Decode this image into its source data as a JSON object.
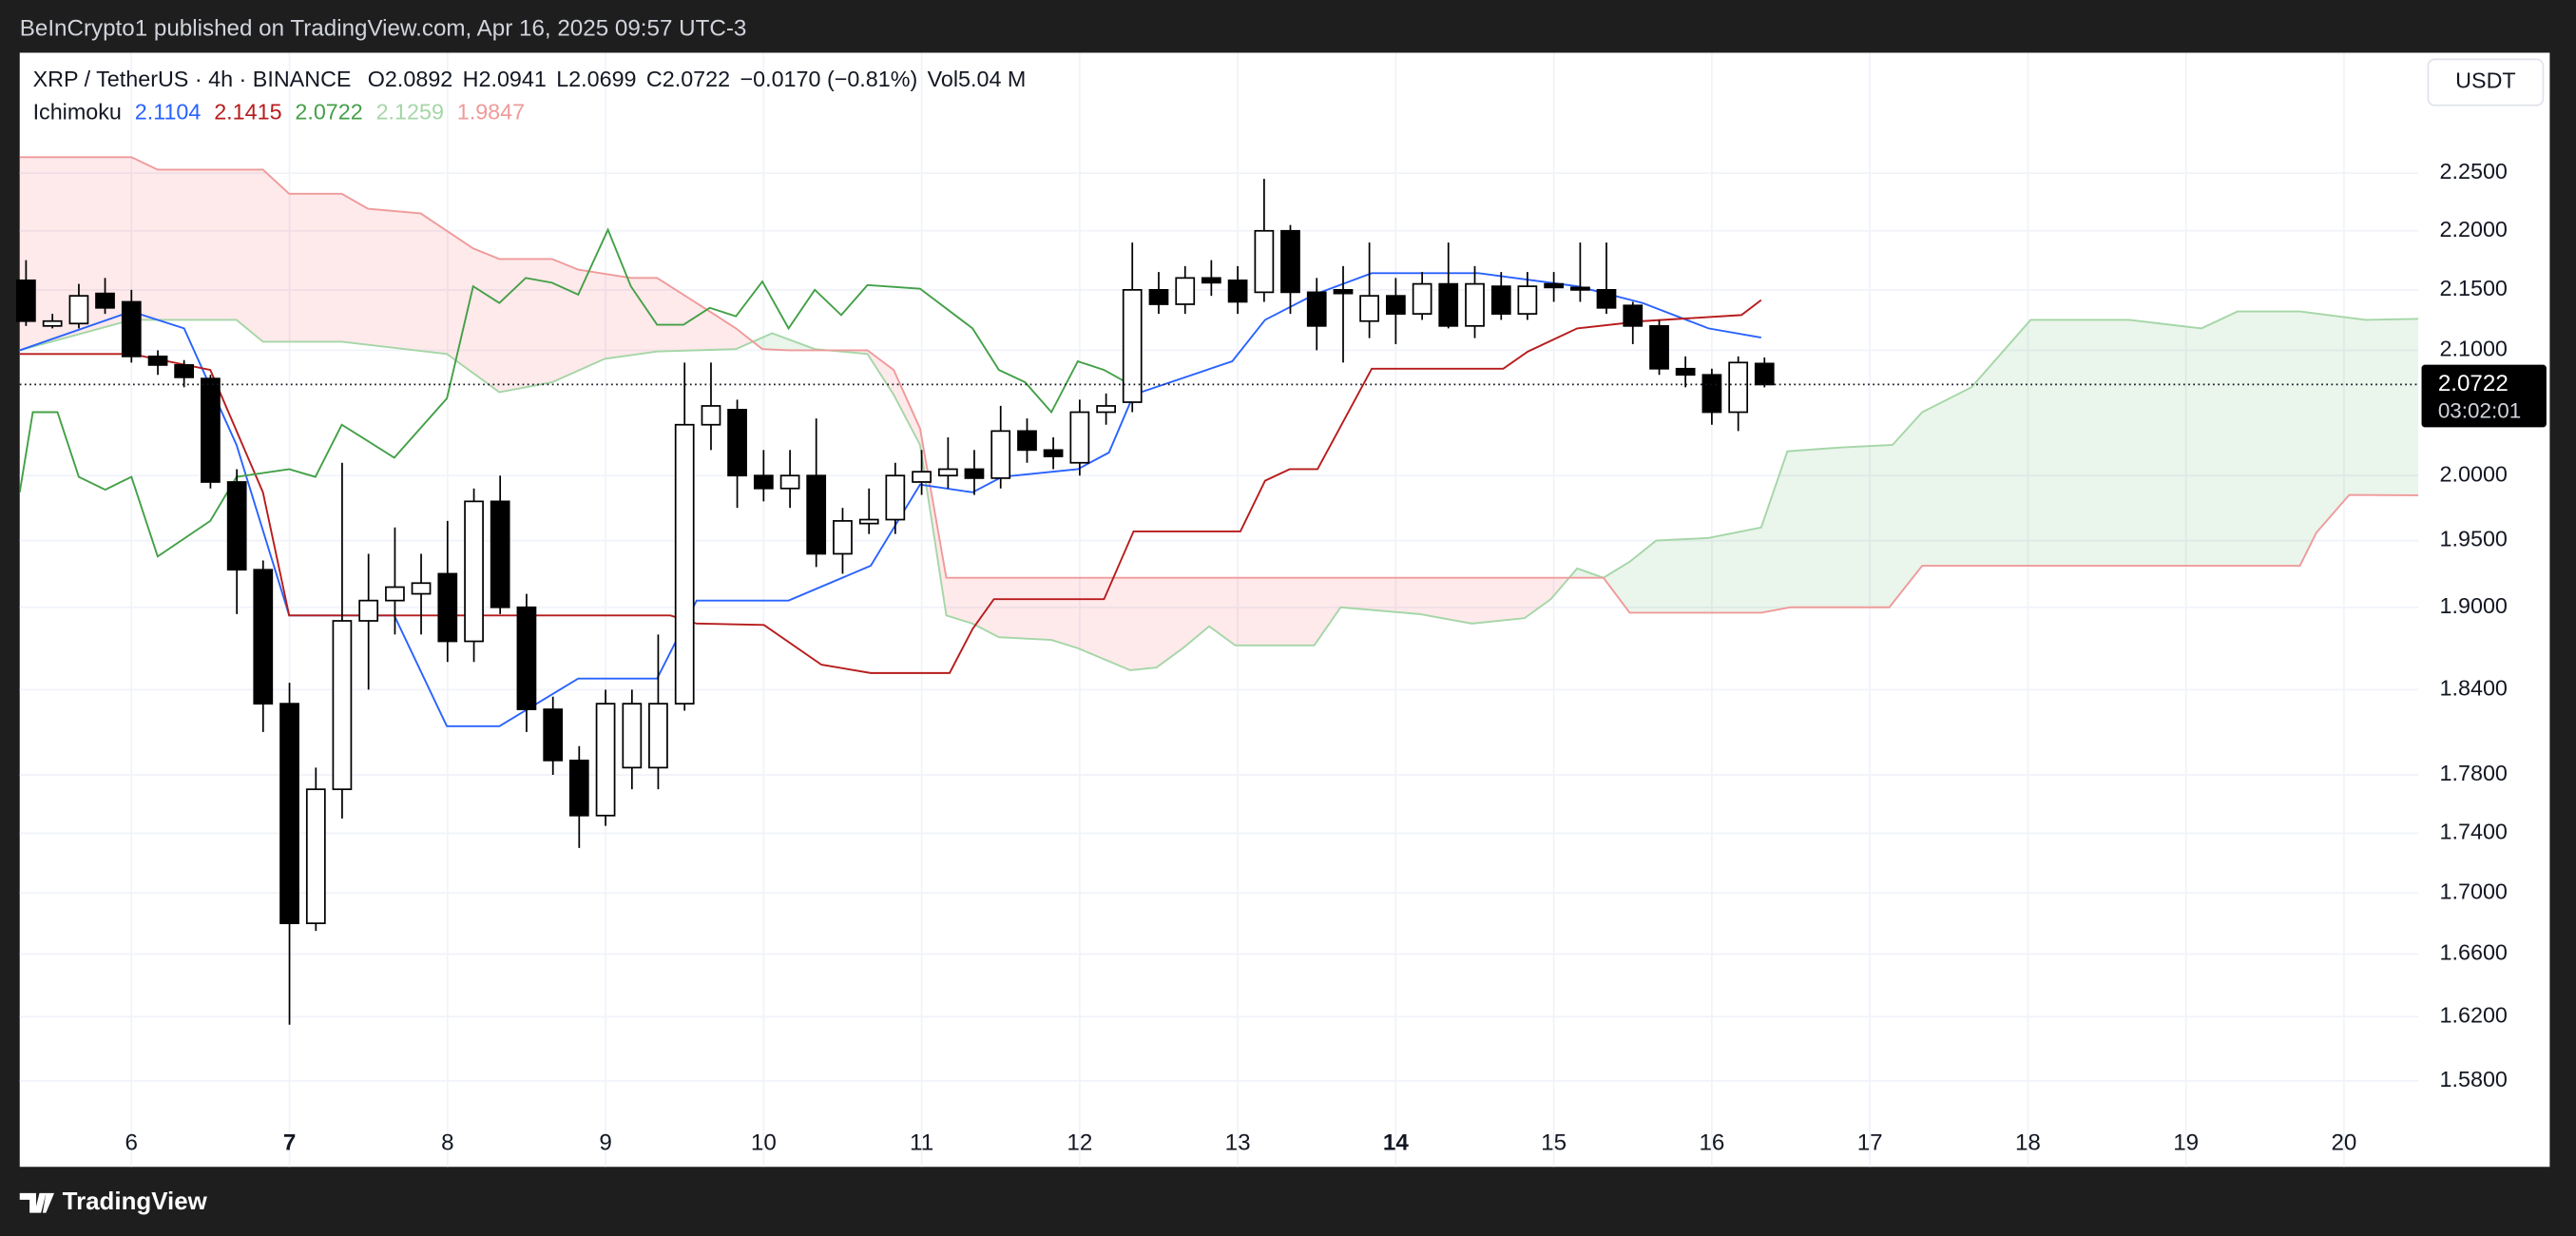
{
  "header": {
    "published": "BeInCrypto1 published on TradingView.com, Apr 16, 2025 09:57 UTC-3"
  },
  "footer": {
    "brand": "TradingView"
  },
  "chart_data": {
    "type": "candlestick",
    "symbol": "XRP / TetherUS · 4h · BINANCE",
    "legend_values": [
      "O2.0892",
      "H2.0941",
      "L2.0699",
      "C2.0722",
      "−0.0170 (−0.81%)",
      "Vol5.04 M"
    ],
    "indicator": "Ichimoku",
    "currency": "USDT",
    "price_label": "2.0722",
    "countdown": "03:02:01",
    "log_scale": true,
    "grid": true,
    "up_color": "#ffffff",
    "down_color": "#000000",
    "xlim": [
      5.293,
      20.47
    ],
    "ylim": [
      1.528,
      2.358
    ],
    "xticks": [
      6,
      7,
      8,
      9,
      10,
      11,
      12,
      13,
      14,
      15,
      16,
      17,
      18,
      19,
      20
    ],
    "bold_xticks": [
      7,
      14
    ],
    "yticks": [
      {
        "value": 1.58,
        "label": "1.5800"
      },
      {
        "value": 1.62,
        "label": "1.6200"
      },
      {
        "value": 1.66,
        "label": "1.6600"
      },
      {
        "value": 1.7,
        "label": "1.7000"
      },
      {
        "value": 1.74,
        "label": "1.7400"
      },
      {
        "value": 1.78,
        "label": "1.7800"
      },
      {
        "value": 1.84,
        "label": "1.8400"
      },
      {
        "value": 1.9,
        "label": "1.9000"
      },
      {
        "value": 1.95,
        "label": "1.9500"
      },
      {
        "value": 2.0,
        "label": "2.0000"
      },
      {
        "value": 2.1,
        "label": "2.1000"
      },
      {
        "value": 2.15,
        "label": "2.1500"
      },
      {
        "value": 2.2,
        "label": "2.2000"
      },
      {
        "value": 2.25,
        "label": "2.2500"
      }
    ],
    "x": [
      5.333,
      5.5,
      5.667,
      5.833,
      6,
      6.167,
      6.333,
      6.5,
      6.667,
      6.833,
      7,
      7.167,
      7.333,
      7.5,
      7.667,
      7.833,
      8,
      8.167,
      8.333,
      8.5,
      8.667,
      8.833,
      9,
      9.167,
      9.333,
      9.5,
      9.667,
      9.833,
      10,
      10.167,
      10.333,
      10.5,
      10.667,
      10.833,
      11,
      11.167,
      11.333,
      11.5,
      11.667,
      11.833,
      12,
      12.167,
      12.333,
      12.5,
      12.667,
      12.833,
      13,
      13.167,
      13.333,
      13.5,
      13.667,
      13.833,
      14,
      14.167,
      14.333,
      14.5,
      14.667,
      14.833,
      15,
      15.167,
      15.333,
      15.5,
      15.667,
      15.833,
      16,
      16.167,
      16.333
    ],
    "open": [
      2.158,
      2.12,
      2.122,
      2.147,
      2.14,
      2.095,
      2.088,
      2.077,
      1.995,
      1.928,
      1.83,
      1.68,
      1.77,
      1.89,
      1.905,
      1.91,
      1.925,
      1.875,
      1.98,
      1.9,
      1.826,
      1.79,
      1.752,
      1.785,
      1.785,
      1.83,
      2.04,
      2.052,
      2.0,
      1.99,
      2.0,
      1.94,
      1.963,
      1.966,
      1.995,
      2.0,
      2.005,
      1.998,
      2.035,
      2.02,
      2.01,
      2.05,
      2.058,
      2.15,
      2.138,
      2.16,
      2.158,
      2.148,
      2.2,
      2.148,
      2.15,
      2.124,
      2.145,
      2.13,
      2.155,
      2.12,
      2.153,
      2.13,
      2.155,
      2.152,
      2.15,
      2.137,
      2.12,
      2.085,
      2.08,
      2.05,
      2.0892
    ],
    "high": [
      2.175,
      2.13,
      2.155,
      2.16,
      2.15,
      2.1,
      2.092,
      2.08,
      2.005,
      1.935,
      1.845,
      1.785,
      2.01,
      1.94,
      1.96,
      1.94,
      1.965,
      1.99,
      2.0,
      1.91,
      1.835,
      1.8,
      1.84,
      1.84,
      1.88,
      2.09,
      2.09,
      2.06,
      2.02,
      2.02,
      2.045,
      1.975,
      1.99,
      2.01,
      2.02,
      2.03,
      2.02,
      2.055,
      2.045,
      2.03,
      2.06,
      2.065,
      2.19,
      2.165,
      2.17,
      2.175,
      2.17,
      2.245,
      2.205,
      2.16,
      2.17,
      2.19,
      2.16,
      2.165,
      2.19,
      2.17,
      2.165,
      2.165,
      2.165,
      2.19,
      2.19,
      2.14,
      2.125,
      2.095,
      2.085,
      2.095,
      2.0941
    ],
    "low": [
      2.12,
      2.118,
      2.118,
      2.13,
      2.09,
      2.08,
      2.07,
      1.99,
      1.895,
      1.81,
      1.615,
      1.675,
      1.75,
      1.84,
      1.88,
      1.88,
      1.86,
      1.86,
      1.895,
      1.81,
      1.78,
      1.73,
      1.745,
      1.77,
      1.77,
      1.825,
      2.02,
      1.975,
      1.98,
      1.975,
      1.93,
      1.925,
      1.955,
      1.955,
      1.985,
      1.99,
      1.985,
      1.99,
      2.01,
      2.005,
      2.0,
      2.04,
      2.05,
      2.13,
      2.13,
      2.145,
      2.13,
      2.14,
      2.13,
      2.1,
      2.09,
      2.11,
      2.105,
      2.125,
      2.118,
      2.11,
      2.125,
      2.125,
      2.14,
      2.14,
      2.13,
      2.105,
      2.08,
      2.07,
      2.04,
      2.035,
      2.0699
    ],
    "close": [
      2.124,
      2.124,
      2.145,
      2.135,
      2.095,
      2.088,
      2.078,
      1.995,
      1.928,
      1.83,
      1.68,
      1.77,
      1.89,
      1.905,
      1.915,
      1.918,
      1.875,
      1.98,
      1.9,
      1.826,
      1.79,
      1.752,
      1.83,
      1.83,
      1.83,
      2.04,
      2.055,
      2.0,
      1.99,
      2.0,
      1.94,
      1.965,
      1.966,
      2.0,
      2.003,
      2.005,
      1.998,
      2.035,
      2.02,
      2.015,
      2.05,
      2.055,
      2.15,
      2.138,
      2.16,
      2.156,
      2.14,
      2.2,
      2.148,
      2.12,
      2.147,
      2.145,
      2.13,
      2.155,
      2.12,
      2.155,
      2.13,
      2.153,
      2.152,
      2.15,
      2.135,
      2.12,
      2.085,
      2.08,
      2.05,
      2.09,
      2.0722
    ],
    "series": [
      {
        "color": "#2962ff",
        "label": "2.1104",
        "x": [
          5.293,
          6.0,
          6.333,
          6.665,
          6.998,
          7.663,
          7.996,
          8.328,
          8.827,
          9.326,
          9.576,
          10.158,
          10.678,
          10.99,
          11.322,
          11.509,
          11.988,
          12.185,
          12.341,
          12.965,
          13.173,
          13.484,
          13.848,
          14.524,
          15.148,
          15.563,
          15.979,
          16.312
        ],
        "values": [
          2.1,
          2.132,
          2.118,
          2.024,
          1.894,
          1.894,
          1.814,
          1.814,
          1.848,
          1.848,
          1.905,
          1.905,
          1.931,
          1.993,
          1.987,
          1.999,
          2.005,
          2.018,
          2.064,
          2.091,
          2.125,
          2.146,
          2.164,
          2.164,
          2.153,
          2.139,
          2.118,
          2.1104
        ]
      },
      {
        "color": "#b71c1c",
        "label": "2.1415",
        "x": [
          5.293,
          6.0,
          6.499,
          6.832,
          6.998,
          9.41,
          9.576,
          10.002,
          10.366,
          10.678,
          11.177,
          11.322,
          11.457,
          12.154,
          12.341,
          13.017,
          13.173,
          13.329,
          13.505,
          13.848,
          14.68,
          14.836,
          15.148,
          15.563,
          16.187,
          16.312
        ],
        "values": [
          2.097,
          2.097,
          2.084,
          1.987,
          1.894,
          1.894,
          1.888,
          1.887,
          1.858,
          1.852,
          1.852,
          1.884,
          1.906,
          1.906,
          1.957,
          1.957,
          1.996,
          2.005,
          2.005,
          2.085,
          2.085,
          2.099,
          2.118,
          2.124,
          2.129,
          2.1415
        ]
      },
      {
        "color": "#43a047",
        "label": "2.0722",
        "x": [
          5.293,
          5.376,
          5.532,
          5.667,
          5.834,
          6.0,
          6.166,
          6.499,
          6.665,
          6.998,
          7.164,
          7.331,
          7.663,
          7.996,
          8.162,
          8.328,
          8.495,
          8.661,
          8.827,
          9.015,
          9.16,
          9.326,
          9.493,
          9.659,
          9.825,
          9.992,
          10.158,
          10.324,
          10.491,
          10.657,
          10.99,
          11.322,
          11.489,
          11.655,
          11.821,
          11.988,
          12.154,
          12.32
        ],
        "values": [
          1.987,
          2.05,
          2.05,
          1.999,
          1.989,
          1.999,
          1.938,
          1.965,
          1.999,
          2.005,
          1.999,
          2.04,
          2.014,
          2.061,
          2.153,
          2.139,
          2.16,
          2.156,
          2.146,
          2.201,
          2.153,
          2.121,
          2.121,
          2.135,
          2.128,
          2.157,
          2.118,
          2.15,
          2.129,
          2.154,
          2.151,
          2.118,
          2.084,
          2.074,
          2.05,
          2.091,
          2.084,
          2.0722
        ]
      }
    ],
    "cloud": {
      "up_color": "rgba(67,160,71,0.11)",
      "down_color": "rgba(242,54,69,0.11)",
      "span_a": {
        "color": "#a5d6a7",
        "label": "2.1259",
        "x": [
          5.293,
          6.0,
          6.665,
          6.832,
          7.331,
          7.996,
          8.328,
          8.661,
          8.994,
          9.326,
          9.825,
          10.054,
          10.324,
          10.657,
          10.823,
          10.99,
          11.156,
          11.322,
          11.489,
          11.821,
          11.988,
          12.32,
          12.486,
          12.653,
          12.819,
          12.985,
          13.484,
          13.651,
          14.15,
          14.482,
          14.815,
          14.981,
          15.148,
          15.314,
          15.48,
          15.647,
          15.979,
          16.312,
          16.478,
          16.811,
          17.143,
          17.331,
          17.643,
          18.017,
          18.641,
          19.098,
          19.326,
          19.721,
          20.137,
          20.47
        ],
        "values": [
          2.1,
          2.125,
          2.125,
          2.107,
          2.107,
          2.097,
          2.066,
          2.074,
          2.093,
          2.099,
          2.101,
          2.114,
          2.101,
          2.097,
          2.064,
          2.024,
          1.894,
          1.888,
          1.878,
          1.876,
          1.87,
          1.854,
          1.856,
          1.87,
          1.886,
          1.872,
          1.872,
          1.9,
          1.895,
          1.888,
          1.892,
          1.906,
          1.929,
          1.922,
          1.934,
          1.95,
          1.952,
          1.96,
          2.019,
          2.022,
          2.024,
          2.05,
          2.07,
          2.125,
          2.125,
          2.118,
          2.132,
          2.132,
          2.125,
          2.1259
        ]
      },
      "span_b": {
        "color": "#ef9a9a",
        "label": "1.9847",
        "x": [
          5.293,
          6.0,
          6.166,
          6.832,
          6.998,
          7.331,
          7.497,
          7.83,
          8.162,
          8.328,
          8.661,
          8.827,
          9.16,
          9.326,
          9.659,
          9.825,
          9.992,
          10.158,
          10.657,
          10.823,
          10.99,
          11.156,
          15.314,
          15.48,
          16.312,
          16.499,
          17.123,
          17.331,
          19.721,
          19.825,
          20.033,
          20.47
        ],
        "values": [
          2.264,
          2.264,
          2.253,
          2.253,
          2.232,
          2.232,
          2.219,
          2.215,
          2.185,
          2.176,
          2.176,
          2.167,
          2.16,
          2.16,
          2.132,
          2.118,
          2.101,
          2.1,
          2.1,
          2.084,
          2.037,
          1.922,
          1.922,
          1.896,
          1.896,
          1.9,
          1.9,
          1.931,
          1.931,
          1.956,
          1.985,
          1.9847
        ]
      }
    }
  }
}
